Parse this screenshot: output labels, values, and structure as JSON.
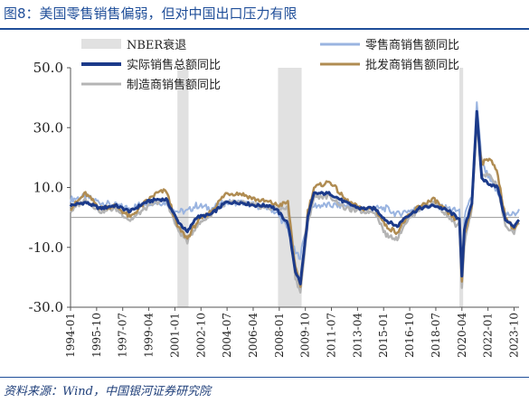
{
  "header": {
    "title": "图8：美国零售销售偏弱，但对中国出口压力有限"
  },
  "footer": {
    "source": "资料来源：Wind，中国银河证券研究院"
  },
  "chart_data": {
    "type": "line",
    "title": "",
    "xlabel": "",
    "ylabel": "",
    "ylim": [
      -30,
      50
    ],
    "yticks": [
      "50.0",
      "30.0",
      "10.0",
      "-10.0",
      "-30.0"
    ],
    "xticks": [
      "1994-01",
      "1995-10",
      "1997-07",
      "1999-04",
      "2001-01",
      "2002-10",
      "2004-07",
      "2006-04",
      "2008-01",
      "2009-10",
      "2011-07",
      "2013-04",
      "2015-01",
      "2016-10",
      "2018-07",
      "2020-04",
      "2022-01",
      "2023-10"
    ],
    "recession_label": "NBER衰退",
    "recessions": [
      [
        "2001-03",
        "2001-11"
      ],
      [
        "2007-12",
        "2009-06"
      ],
      [
        "2020-02",
        "2020-04"
      ]
    ],
    "legend_placement": "top",
    "series": [
      {
        "name": "零售商销售额同比",
        "color": "#9ab4e0"
      },
      {
        "name": "实际销售总额同比",
        "color": "#1b3a8a"
      },
      {
        "name": "批发商销售额同比",
        "color": "#b08c52"
      },
      {
        "name": "制造商销售额同比",
        "color": "#b4b4b4"
      }
    ],
    "anchors": {
      "dates": [
        "1994-01",
        "1995-01",
        "1996-01",
        "1997-01",
        "1998-01",
        "1999-01",
        "1999-10",
        "2000-06",
        "2001-03",
        "2001-11",
        "2002-06",
        "2003-06",
        "2004-06",
        "2005-06",
        "2006-06",
        "2007-06",
        "2007-12",
        "2008-08",
        "2009-02",
        "2009-06",
        "2009-12",
        "2010-05",
        "2011-06",
        "2012-06",
        "2013-06",
        "2014-06",
        "2015-03",
        "2015-12",
        "2016-06",
        "2017-06",
        "2018-06",
        "2019-06",
        "2019-12",
        "2020-02",
        "2020-04",
        "2020-06",
        "2020-12",
        "2021-04",
        "2021-08",
        "2022-03",
        "2022-09",
        "2023-03",
        "2023-10",
        "2024-01"
      ],
      "values": [
        [
          6,
          7,
          5,
          4,
          3,
          5,
          5,
          5,
          2,
          2,
          4,
          3,
          5,
          5,
          4,
          3,
          1,
          -4,
          -12,
          -13,
          0,
          4,
          4,
          4,
          3,
          3,
          3,
          1,
          2,
          3,
          4,
          3,
          2,
          3,
          -21,
          0,
          7,
          38,
          18,
          12,
          8,
          1,
          1,
          2
        ],
        [
          4,
          5,
          3,
          4,
          2,
          5,
          6,
          6,
          -1,
          -5,
          0,
          1,
          5,
          5,
          4,
          4,
          2,
          -2,
          -18,
          -22,
          0,
          8,
          8,
          5,
          3,
          3,
          -1,
          -3,
          0,
          3,
          4,
          2,
          0,
          0,
          -20,
          -4,
          5,
          35,
          13,
          11,
          10,
          -1,
          -3,
          -1
        ],
        [
          3,
          8,
          3,
          4,
          0,
          5,
          8,
          9,
          -3,
          -7,
          -2,
          2,
          8,
          8,
          6,
          5,
          4,
          5,
          -17,
          -23,
          2,
          10,
          12,
          6,
          3,
          3,
          -3,
          -5,
          -1,
          4,
          6,
          1,
          -1,
          0,
          -22,
          -6,
          4,
          33,
          18,
          20,
          14,
          0,
          -4,
          -2
        ],
        [
          2,
          6,
          2,
          3,
          -1,
          3,
          5,
          6,
          -4,
          -8,
          -3,
          1,
          5,
          5,
          4,
          3,
          3,
          3,
          -20,
          -25,
          -2,
          7,
          7,
          3,
          2,
          2,
          -6,
          -7,
          -2,
          3,
          5,
          0,
          -3,
          -2,
          -24,
          -9,
          3,
          32,
          14,
          14,
          10,
          -3,
          -5,
          -2
        ]
      ]
    }
  }
}
